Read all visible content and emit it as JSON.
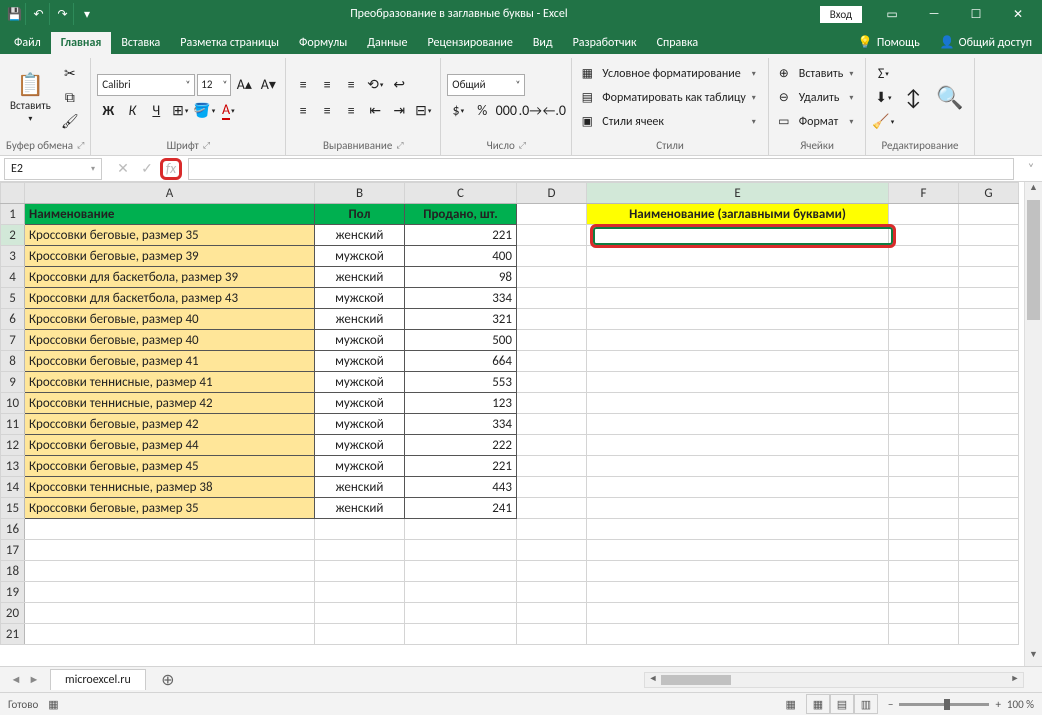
{
  "titlebar": {
    "title": "Преобразование в заглавные буквы  -  Excel",
    "login": "Вход"
  },
  "tabs": {
    "file": "Файл",
    "home": "Главная",
    "insert": "Вставка",
    "layout": "Разметка страницы",
    "formulas": "Формулы",
    "data": "Данные",
    "review": "Рецензирование",
    "view": "Вид",
    "dev": "Разработчик",
    "help": "Справка",
    "tell": "Помощь",
    "share": "Общий доступ"
  },
  "ribbon": {
    "paste": "Вставить",
    "grp_clipboard": "Буфер обмена",
    "grp_font": "Шрифт",
    "grp_align": "Выравнивание",
    "grp_number": "Число",
    "grp_styles": "Стили",
    "grp_cells": "Ячейки",
    "grp_editing": "Редактирование",
    "font_name": "Calibri",
    "font_size": "12",
    "num_fmt": "Общий",
    "cond_fmt": "Условное форматирование",
    "fmt_table": "Форматировать как таблицу",
    "cell_styles": "Стили ячеек",
    "insert_cells": "Вставить",
    "delete_cells": "Удалить",
    "format_cells": "Формат"
  },
  "namebox": "E2",
  "sheet": {
    "cols": [
      "A",
      "B",
      "C",
      "D",
      "E",
      "F",
      "G"
    ],
    "header": {
      "a": "Наименование",
      "b": "Пол",
      "c": "Продано, шт.",
      "e": "Наименование (заглавными буквами)"
    },
    "rows": [
      {
        "a": "Кроссовки беговые, размер 35",
        "b": "женский",
        "c": 221
      },
      {
        "a": "Кроссовки беговые, размер 39",
        "b": "мужской",
        "c": 400
      },
      {
        "a": "Кроссовки для баскетбола, размер 39",
        "b": "женский",
        "c": 98
      },
      {
        "a": "Кроссовки для баскетбола, размер 43",
        "b": "мужской",
        "c": 334
      },
      {
        "a": "Кроссовки беговые, размер 40",
        "b": "женский",
        "c": 321
      },
      {
        "a": "Кроссовки беговые, размер 40",
        "b": "мужской",
        "c": 500
      },
      {
        "a": "Кроссовки беговые, размер 41",
        "b": "мужской",
        "c": 664
      },
      {
        "a": "Кроссовки теннисные, размер 41",
        "b": "мужской",
        "c": 553
      },
      {
        "a": "Кроссовки теннисные, размер 42",
        "b": "мужской",
        "c": 123
      },
      {
        "a": "Кроссовки беговые, размер 42",
        "b": "мужской",
        "c": 334
      },
      {
        "a": "Кроссовки беговые, размер 44",
        "b": "мужской",
        "c": 222
      },
      {
        "a": "Кроссовки беговые, размер 45",
        "b": "мужской",
        "c": 221
      },
      {
        "a": "Кроссовки теннисные, размер 38",
        "b": "женский",
        "c": 443
      },
      {
        "a": "Кроссовки беговые, размер 35",
        "b": "женский",
        "c": 241
      }
    ],
    "blank_rows": [
      16,
      17,
      18,
      19,
      20,
      21
    ]
  },
  "sheet_tab": "microexcel.ru",
  "status": {
    "ready": "Готово",
    "zoom": "100 %"
  },
  "colors": {
    "excel_green": "#217346",
    "header_green": "#00b050",
    "data_yellow": "#ffe699",
    "highlight_yellow": "#ffff00",
    "red_highlight": "#d92b2b"
  }
}
